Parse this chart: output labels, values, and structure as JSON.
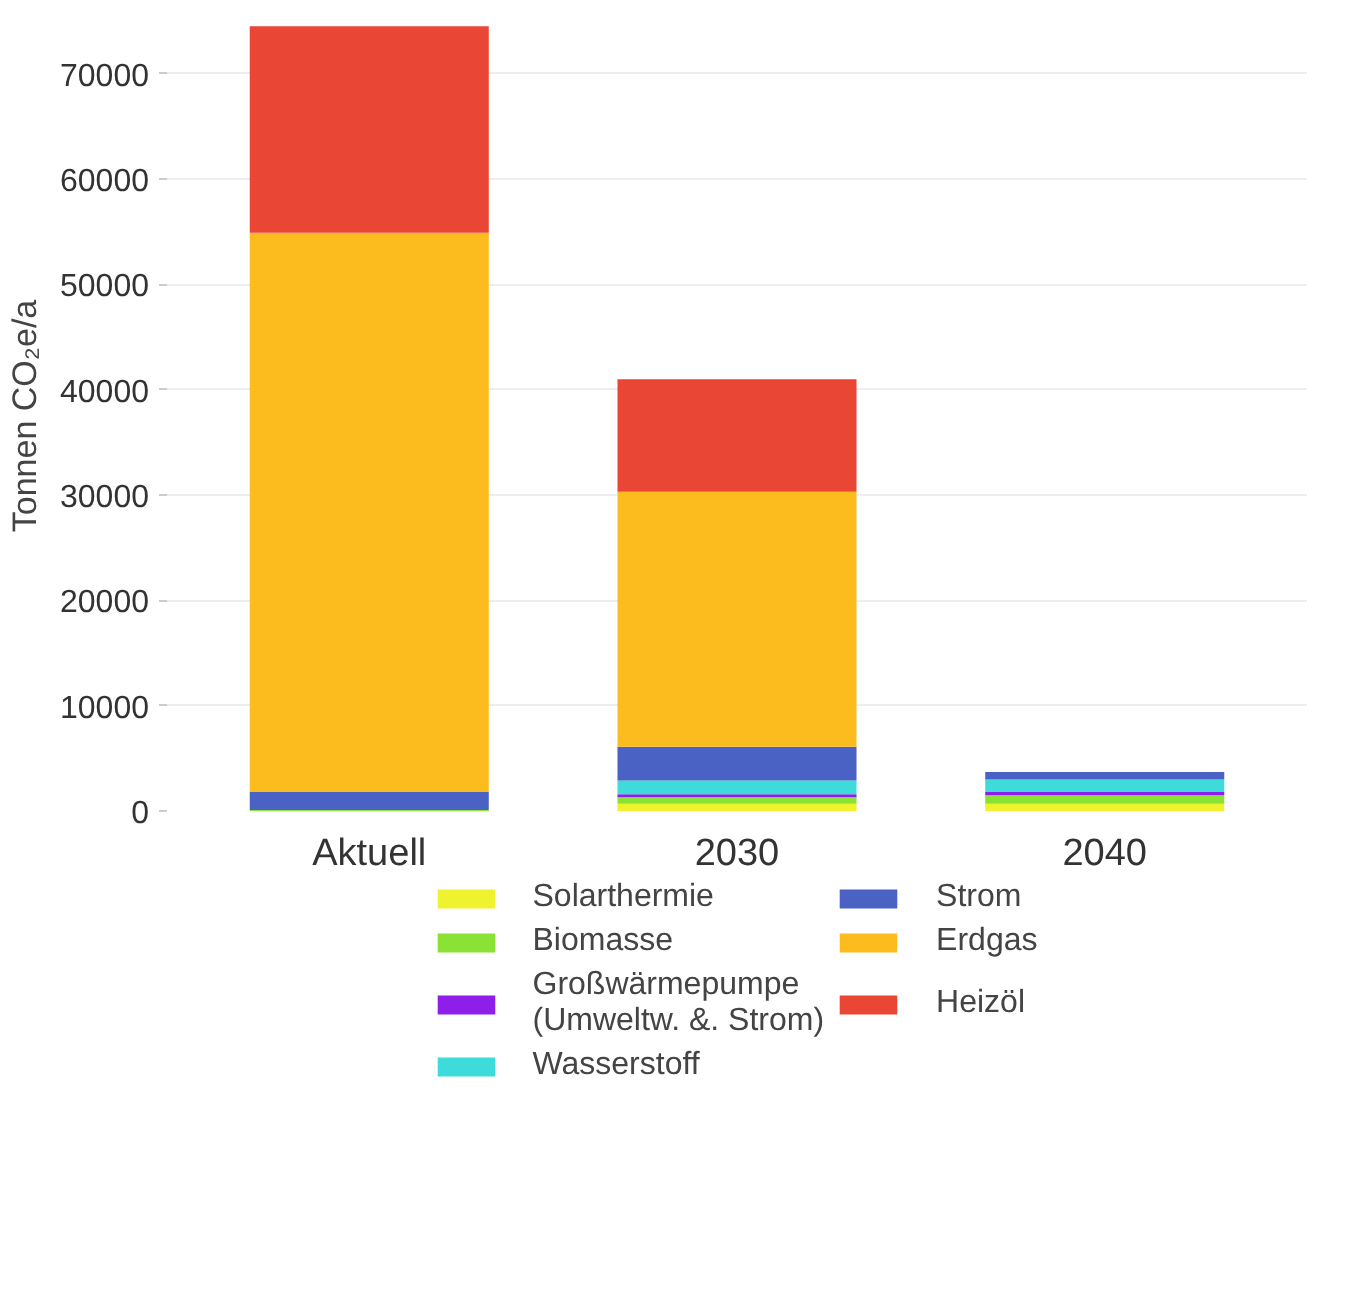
{
  "chart_data": {
    "type": "bar",
    "stacked": true,
    "ylabel": "Tonnen CO₂e/a",
    "categories": [
      "Aktuell",
      "2030",
      "2040"
    ],
    "series": [
      {
        "name": "Solarthermie",
        "color": "#eef22f",
        "values": [
          0,
          700,
          700
        ]
      },
      {
        "name": "Biomasse",
        "color": "#8ae234",
        "values": [
          100,
          600,
          800
        ]
      },
      {
        "name": "Großwärmepumpe (Umweltw. &. Strom)",
        "color": "#8f1eea",
        "values": [
          0,
          300,
          300
        ]
      },
      {
        "name": "Wasserstoff",
        "color": "#3ddbd9",
        "values": [
          0,
          1300,
          1200
        ]
      },
      {
        "name": "Strom",
        "color": "#4a62c4",
        "values": [
          1700,
          3200,
          700
        ]
      },
      {
        "name": "Erdgas",
        "color": "#fdbc1e",
        "values": [
          53100,
          24200,
          0
        ]
      },
      {
        "name": "Heizöl",
        "color": "#ea4636",
        "values": [
          19600,
          10700,
          0
        ]
      }
    ],
    "ylim": [
      0,
      75000
    ],
    "yticks": [
      0,
      10000,
      20000,
      30000,
      40000,
      50000,
      60000,
      70000
    ],
    "grid": "y",
    "legend": "bottom"
  }
}
